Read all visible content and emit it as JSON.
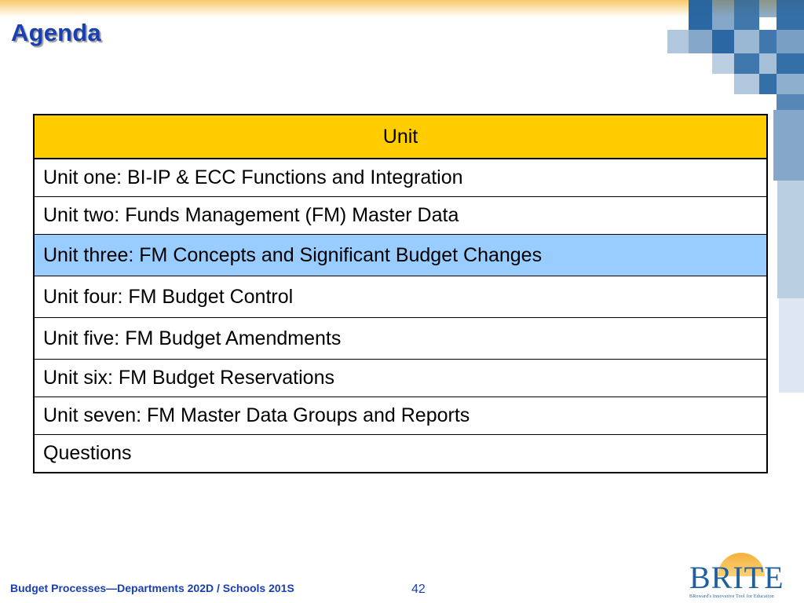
{
  "slide": {
    "title": "Agenda",
    "footer_text": "Budget Processes—Departments 202D / Schools 201S",
    "page_number": "42"
  },
  "table": {
    "header": "Unit",
    "rows": [
      "Unit one: BI-IP & ECC Functions and Integration",
      "Unit two: Funds Management (FM) Master Data",
      "Unit three: FM Concepts and Significant Budget Changes",
      "Unit four: FM Budget Control",
      "Unit five: FM Budget Amendments",
      "Unit six: FM Budget Reservations",
      "Unit seven: FM Master Data Groups and Reports",
      "Questions"
    ],
    "highlighted_row": 2
  },
  "logo": {
    "wordmark": "BRITE",
    "tagline": "BRoward's Innovative Tool for Education"
  },
  "colors": {
    "title": "#1a3fb0",
    "header_fill": "#ffcc00",
    "highlight_fill": "#99ccff",
    "accent_blue": "#1f5f9e",
    "top_band": "#f7c96a"
  }
}
